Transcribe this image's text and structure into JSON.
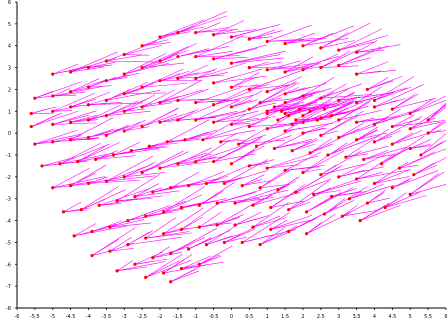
{
  "chart_data": {
    "type": "scatter",
    "title": "",
    "xlabel": "",
    "ylabel": "",
    "xlim": [
      -6,
      6
    ],
    "ylim": [
      -8,
      6
    ],
    "grid": false,
    "x_ticks": [
      "-6",
      "-5.5",
      "-5",
      "-4.5",
      "-4",
      "-3.5",
      "-3",
      "-2.5",
      "-2",
      "-1.5",
      "-1",
      "-0.5",
      "0",
      "0.5",
      "1",
      "1.5",
      "2",
      "2.5",
      "3",
      "3.5",
      "4",
      "4.5",
      "5",
      "5.5",
      "6"
    ],
    "y_ticks": [
      "-8",
      "-7",
      "-6",
      "-5",
      "-4",
      "-3",
      "-2",
      "-1",
      "0",
      "1",
      "2",
      "3",
      "4",
      "5",
      "6"
    ],
    "colors": {
      "points": "#ff0000",
      "segments": "#ff00ff",
      "axes": "#000000"
    },
    "marker": "filled-circle",
    "series": [
      {
        "points": [
          [
            -5.0,
            2.7
          ],
          [
            -4.5,
            2.8
          ],
          [
            -4.0,
            3.0
          ],
          [
            -3.5,
            3.3
          ],
          [
            -3.0,
            3.6
          ],
          [
            -2.5,
            4.0
          ],
          [
            -2.0,
            4.4
          ],
          [
            -1.5,
            4.6
          ],
          [
            -1.0,
            4.6
          ],
          [
            -0.5,
            4.5
          ],
          [
            0.0,
            4.4
          ],
          [
            0.5,
            4.3
          ],
          [
            1.0,
            4.2
          ],
          [
            1.5,
            4.1
          ],
          [
            2.0,
            4.0
          ],
          [
            2.5,
            3.9
          ],
          [
            3.0,
            3.8
          ],
          [
            3.5,
            3.7
          ],
          [
            -5.5,
            1.6
          ],
          [
            -5.0,
            1.7
          ],
          [
            -4.5,
            1.9
          ],
          [
            -4.0,
            2.1
          ],
          [
            -3.5,
            2.4
          ],
          [
            -3.0,
            2.7
          ],
          [
            -2.5,
            3.0
          ],
          [
            -2.0,
            3.3
          ],
          [
            -1.5,
            3.5
          ],
          [
            -1.0,
            3.5
          ],
          [
            -0.5,
            3.4
          ],
          [
            0.0,
            3.2
          ],
          [
            0.5,
            3.0
          ],
          [
            1.0,
            2.9
          ],
          [
            1.5,
            2.8
          ],
          [
            2.0,
            2.9
          ],
          [
            2.5,
            3.0
          ],
          [
            3.0,
            3.1
          ],
          [
            3.5,
            2.7
          ],
          [
            3.8,
            2.0
          ],
          [
            4.0,
            1.5
          ],
          [
            -5.6,
            0.9
          ],
          [
            -5.0,
            1.0
          ],
          [
            -4.5,
            1.2
          ],
          [
            -4.0,
            1.3
          ],
          [
            -3.5,
            1.5
          ],
          [
            -3.0,
            1.8
          ],
          [
            -2.5,
            2.1
          ],
          [
            -2.0,
            2.4
          ],
          [
            -1.5,
            2.5
          ],
          [
            -1.0,
            2.5
          ],
          [
            -0.5,
            2.3
          ],
          [
            0.0,
            2.1
          ],
          [
            0.5,
            2.0
          ],
          [
            1.0,
            1.9
          ],
          [
            1.5,
            1.8
          ],
          [
            2.0,
            1.7
          ],
          [
            2.5,
            1.6
          ],
          [
            3.0,
            1.5
          ],
          [
            3.5,
            1.4
          ],
          [
            4.0,
            1.2
          ],
          [
            4.5,
            1.1
          ],
          [
            5.0,
            0.9
          ],
          [
            5.5,
            0.6
          ],
          [
            -5.6,
            0.3
          ],
          [
            -5.0,
            0.4
          ],
          [
            -4.5,
            0.5
          ],
          [
            -4.0,
            0.6
          ],
          [
            -3.5,
            0.8
          ],
          [
            -3.0,
            1.0
          ],
          [
            -2.5,
            1.2
          ],
          [
            -2.0,
            1.4
          ],
          [
            -1.5,
            1.5
          ],
          [
            -1.0,
            1.4
          ],
          [
            -0.5,
            1.3
          ],
          [
            0.0,
            1.2
          ],
          [
            0.5,
            1.1
          ],
          [
            1.0,
            1.0
          ],
          [
            1.5,
            0.9
          ],
          [
            2.0,
            0.8
          ],
          [
            2.5,
            0.7
          ],
          [
            3.0,
            0.6
          ],
          [
            3.5,
            0.5
          ],
          [
            4.0,
            0.4
          ],
          [
            4.5,
            0.3
          ],
          [
            5.0,
            0.2
          ],
          [
            5.5,
            0.0
          ],
          [
            -5.5,
            -0.5
          ],
          [
            -5.0,
            -0.4
          ],
          [
            -4.5,
            -0.3
          ],
          [
            -4.0,
            -0.2
          ],
          [
            -3.5,
            -0.1
          ],
          [
            -3.0,
            0.1
          ],
          [
            -2.5,
            0.3
          ],
          [
            -2.0,
            0.5
          ],
          [
            -1.5,
            0.6
          ],
          [
            -1.0,
            0.6
          ],
          [
            -0.5,
            0.5
          ],
          [
            0.0,
            0.4
          ],
          [
            0.5,
            0.3
          ],
          [
            1.0,
            0.2
          ],
          [
            1.5,
            0.1
          ],
          [
            2.0,
            0.0
          ],
          [
            2.5,
            -0.1
          ],
          [
            3.0,
            -0.2
          ],
          [
            3.5,
            -0.3
          ],
          [
            4.0,
            -0.4
          ],
          [
            4.5,
            -0.5
          ],
          [
            5.0,
            -0.7
          ],
          [
            5.3,
            -1.0
          ],
          [
            -5.3,
            -1.5
          ],
          [
            -4.8,
            -1.4
          ],
          [
            -4.3,
            -1.3
          ],
          [
            -3.8,
            -1.2
          ],
          [
            -3.3,
            -1.0
          ],
          [
            -2.8,
            -0.8
          ],
          [
            -2.3,
            -0.6
          ],
          [
            -1.8,
            -0.4
          ],
          [
            -1.3,
            -0.3
          ],
          [
            -0.8,
            -0.3
          ],
          [
            -0.3,
            -0.4
          ],
          [
            0.2,
            -0.5
          ],
          [
            0.7,
            -0.6
          ],
          [
            1.2,
            -0.7
          ],
          [
            1.7,
            -0.8
          ],
          [
            2.2,
            -0.9
          ],
          [
            2.7,
            -1.0
          ],
          [
            3.2,
            -1.1
          ],
          [
            3.7,
            -1.2
          ],
          [
            4.2,
            -1.4
          ],
          [
            4.7,
            -1.6
          ],
          [
            5.1,
            -1.9
          ],
          [
            -5.0,
            -2.5
          ],
          [
            -4.5,
            -2.4
          ],
          [
            -4.0,
            -2.3
          ],
          [
            -3.5,
            -2.2
          ],
          [
            -3.0,
            -2.0
          ],
          [
            -2.5,
            -1.8
          ],
          [
            -2.0,
            -1.6
          ],
          [
            -1.5,
            -1.4
          ],
          [
            -1.0,
            -1.3
          ],
          [
            -0.5,
            -1.3
          ],
          [
            0.0,
            -1.4
          ],
          [
            0.5,
            -1.5
          ],
          [
            1.0,
            -1.6
          ],
          [
            1.5,
            -1.7
          ],
          [
            2.0,
            -1.8
          ],
          [
            2.5,
            -1.9
          ],
          [
            3.0,
            -2.0
          ],
          [
            3.5,
            -2.1
          ],
          [
            4.0,
            -2.3
          ],
          [
            4.5,
            -2.5
          ],
          [
            5.0,
            -2.8
          ],
          [
            -4.7,
            -3.6
          ],
          [
            -4.2,
            -3.5
          ],
          [
            -3.7,
            -3.3
          ],
          [
            -3.2,
            -3.1
          ],
          [
            -2.7,
            -2.9
          ],
          [
            -2.2,
            -2.7
          ],
          [
            -1.7,
            -2.5
          ],
          [
            -1.2,
            -2.4
          ],
          [
            -0.7,
            -2.3
          ],
          [
            -0.2,
            -2.3
          ],
          [
            0.3,
            -2.4
          ],
          [
            0.8,
            -2.5
          ],
          [
            1.3,
            -2.6
          ],
          [
            1.8,
            -2.7
          ],
          [
            2.3,
            -2.8
          ],
          [
            2.8,
            -2.9
          ],
          [
            3.3,
            -3.0
          ],
          [
            3.8,
            -3.2
          ],
          [
            4.3,
            -3.4
          ],
          [
            -4.4,
            -4.7
          ],
          [
            -3.9,
            -4.5
          ],
          [
            -3.4,
            -4.3
          ],
          [
            -2.9,
            -4.0
          ],
          [
            -2.4,
            -3.8
          ],
          [
            -1.9,
            -3.6
          ],
          [
            -1.4,
            -3.4
          ],
          [
            -0.9,
            -3.3
          ],
          [
            -0.4,
            -3.2
          ],
          [
            0.1,
            -3.2
          ],
          [
            0.6,
            -3.3
          ],
          [
            1.1,
            -3.4
          ],
          [
            1.6,
            -3.5
          ],
          [
            2.1,
            -3.6
          ],
          [
            2.6,
            -3.7
          ],
          [
            3.1,
            -3.8
          ],
          [
            3.6,
            -4.0
          ],
          [
            -3.9,
            -5.6
          ],
          [
            -3.4,
            -5.4
          ],
          [
            -2.9,
            -5.1
          ],
          [
            -2.4,
            -4.8
          ],
          [
            -1.9,
            -4.6
          ],
          [
            -1.4,
            -4.4
          ],
          [
            -0.9,
            -4.3
          ],
          [
            -0.4,
            -4.2
          ],
          [
            0.1,
            -4.2
          ],
          [
            0.6,
            -4.3
          ],
          [
            1.1,
            -4.4
          ],
          [
            1.6,
            -4.5
          ],
          [
            2.1,
            -4.6
          ],
          [
            -3.2,
            -6.3
          ],
          [
            -2.7,
            -6.0
          ],
          [
            -2.2,
            -5.7
          ],
          [
            -1.7,
            -5.5
          ],
          [
            -1.2,
            -5.3
          ],
          [
            -0.7,
            -5.1
          ],
          [
            -0.2,
            -5.0
          ],
          [
            0.3,
            -5.0
          ],
          [
            0.8,
            -5.1
          ],
          [
            -2.4,
            -6.6
          ],
          [
            -1.9,
            -6.4
          ],
          [
            -1.4,
            -6.2
          ],
          [
            -0.9,
            -6.0
          ],
          [
            -1.7,
            -6.8
          ],
          [
            1.2,
            1.2
          ],
          [
            1.4,
            1.0
          ],
          [
            1.6,
            0.8
          ],
          [
            1.8,
            0.6
          ],
          [
            2.0,
            0.5
          ],
          [
            1.0,
            0.9
          ],
          [
            1.3,
            0.6
          ],
          [
            1.7,
            0.4
          ],
          [
            2.2,
            1.0
          ],
          [
            2.4,
            0.6
          ],
          [
            0.8,
            1.4
          ],
          [
            1.5,
            1.4
          ],
          [
            1.9,
            1.1
          ],
          [
            2.6,
            1.1
          ],
          [
            2.8,
            0.8
          ]
        ]
      }
    ]
  }
}
